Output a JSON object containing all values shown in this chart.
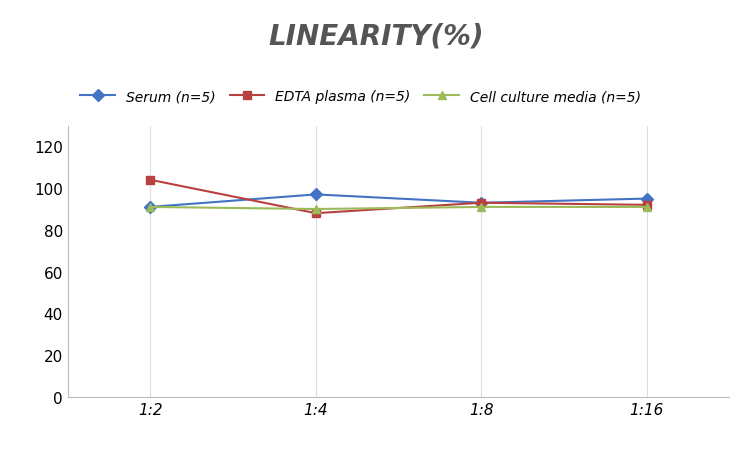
{
  "title": "LINEARITY(%)",
  "x_labels": [
    "1:2",
    "1:4",
    "1:8",
    "1:16"
  ],
  "x_positions": [
    0,
    1,
    2,
    3
  ],
  "series": [
    {
      "label": "Serum (n=5)",
      "values": [
        91,
        97,
        93,
        95
      ],
      "color": "#4472C4",
      "marker": "D",
      "marker_facecolor": "#4472C4",
      "linewidth": 1.5
    },
    {
      "label": "EDTA plasma (n=5)",
      "values": [
        104,
        88,
        93,
        92
      ],
      "color": "#B84040",
      "marker": "s",
      "marker_facecolor": "#B84040",
      "linewidth": 1.5
    },
    {
      "label": "Cell culture media (n=5)",
      "values": [
        91,
        90,
        91,
        91
      ],
      "color": "#9BBB59",
      "marker": "^",
      "marker_facecolor": "#9BBB59",
      "linewidth": 1.5
    }
  ],
  "ylim": [
    0,
    130
  ],
  "yticks": [
    0,
    20,
    40,
    60,
    80,
    100,
    120
  ],
  "grid_color": "#DDDDDD",
  "background_color": "#FFFFFF",
  "title_fontsize": 20,
  "title_color": "#555555",
  "legend_fontsize": 10,
  "tick_fontsize": 11
}
